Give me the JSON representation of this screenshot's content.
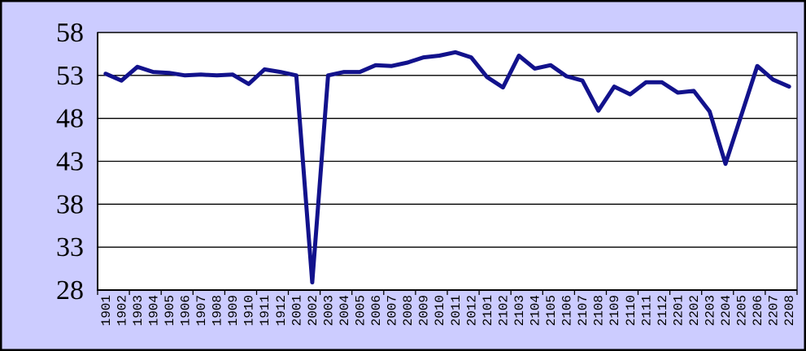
{
  "chart_style": {
    "background_color": "#CCCCFF",
    "plot_background_color": "#FFFFFF",
    "line_color": "#12128C",
    "grid_color": "#000000",
    "axis_color": "#000000",
    "border_color": "#000000",
    "text_color": "#000000"
  },
  "chart_data": {
    "type": "line",
    "title": "",
    "xlabel": "",
    "ylabel": "",
    "legend": "none",
    "grid": "horizontal-only",
    "x_label_rotation_deg": -90,
    "x_tick_interval": 2,
    "ylim": [
      28,
      58
    ],
    "yticks": [
      28,
      33,
      38,
      43,
      48,
      53,
      58
    ],
    "categories": [
      "1901",
      "1902",
      "1903",
      "1904",
      "1905",
      "1906",
      "1907",
      "1908",
      "1909",
      "1910",
      "1911",
      "1912",
      "2001",
      "2002",
      "2003",
      "2004",
      "2005",
      "2006",
      "2007",
      "2008",
      "2009",
      "2010",
      "2011",
      "2012",
      "2101",
      "2102",
      "2103",
      "2104",
      "2105",
      "2106",
      "2107",
      "2108",
      "2109",
      "2110",
      "2111",
      "2112",
      "2201",
      "2202",
      "2203",
      "2204",
      "2205",
      "2206",
      "2207",
      "2208"
    ],
    "values": [
      53.2,
      52.4,
      54.0,
      53.4,
      53.3,
      53.0,
      53.1,
      53.0,
      53.1,
      52.0,
      53.7,
      53.4,
      53.0,
      28.9,
      53.0,
      53.4,
      53.4,
      54.2,
      54.1,
      54.5,
      55.1,
      55.3,
      55.7,
      55.1,
      52.8,
      51.6,
      55.3,
      53.8,
      54.2,
      52.9,
      52.4,
      48.9,
      51.7,
      50.8,
      52.2,
      52.2,
      51.0,
      51.2,
      48.8,
      42.7,
      48.4,
      54.1,
      52.5,
      51.7
    ]
  }
}
